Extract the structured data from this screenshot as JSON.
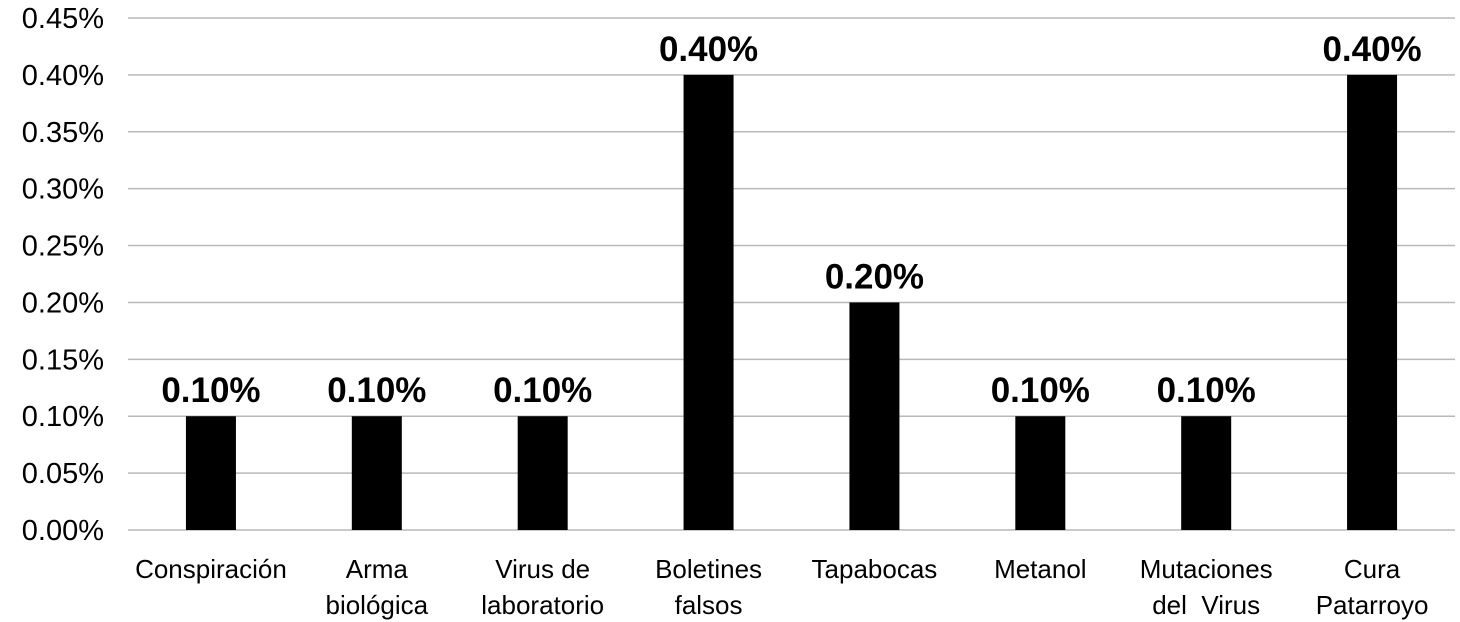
{
  "chart_data": {
    "type": "bar",
    "title": "",
    "xlabel": "",
    "ylabel": "",
    "categories": [
      [
        "Conspiración"
      ],
      [
        "Arma",
        "biológica"
      ],
      [
        "Virus de",
        "laboratorio"
      ],
      [
        "Boletines",
        "falsos"
      ],
      [
        "Tapabocas"
      ],
      [
        "Metanol"
      ],
      [
        "Mutaciones",
        "del  Virus"
      ],
      [
        "Cura",
        "Patarroyo"
      ]
    ],
    "values": [
      0.1,
      0.1,
      0.1,
      0.4,
      0.2,
      0.1,
      0.1,
      0.4
    ],
    "data_labels": [
      "0.10%",
      "0.10%",
      "0.10%",
      "0.40%",
      "0.20%",
      "0.10%",
      "0.10%",
      "0.40%"
    ],
    "yticks": [
      "0.00%",
      "0.05%",
      "0.10%",
      "0.15%",
      "0.20%",
      "0.25%",
      "0.30%",
      "0.35%",
      "0.40%",
      "0.45%"
    ],
    "ylim": [
      0,
      0.45
    ],
    "grid": true,
    "legend": "none",
    "bar_color": "#000000",
    "grid_color": "#b9b9b9"
  }
}
